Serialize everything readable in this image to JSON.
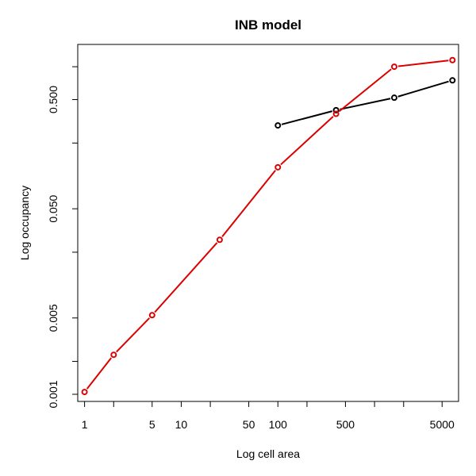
{
  "chart_data": {
    "type": "line",
    "title": "INB model",
    "xlabel": "Log cell area",
    "ylabel": "Log occupancy",
    "xscale": "log",
    "yscale": "log",
    "x_ticks": [
      1,
      2,
      5,
      10,
      20,
      50,
      100,
      200,
      500,
      1000,
      2000,
      5000
    ],
    "x_tick_labels": [
      "1",
      "",
      "5",
      "10",
      "",
      "50",
      "100",
      "",
      "500",
      "",
      "",
      "5000"
    ],
    "y_ticks": [
      0.001,
      0.002,
      0.005,
      0.02,
      0.05,
      0.2,
      0.5,
      1.0
    ],
    "y_tick_labels": [
      "0.001",
      "",
      "0.005",
      "",
      "0.050",
      "",
      "0.500",
      ""
    ],
    "xlim": [
      0.85,
      7400
    ],
    "ylim": [
      0.00086,
      1.6
    ],
    "series": [
      {
        "color": "#000000",
        "x": [
          100,
          400,
          1600,
          6400
        ],
        "y": [
          0.29,
          0.4,
          0.52,
          0.75
        ]
      },
      {
        "color": "#dd0000",
        "x": [
          1,
          2,
          5,
          25,
          100,
          400,
          1600,
          6400
        ],
        "y": [
          0.00105,
          0.0023,
          0.0053,
          0.026,
          0.12,
          0.37,
          1.0,
          1.15
        ]
      }
    ]
  }
}
